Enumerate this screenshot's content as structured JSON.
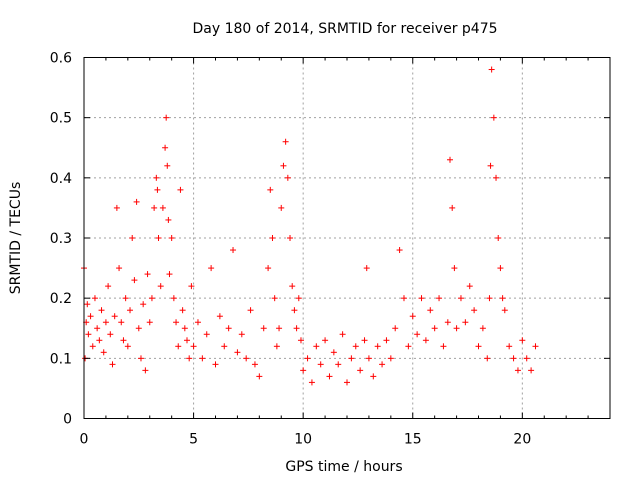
{
  "chart_data": {
    "type": "scatter",
    "title": "Day 180 of 2014, SRMTID for receiver p475",
    "xlabel": "GPS time / hours",
    "ylabel": "SRMTID / TECUs",
    "xlim": [
      0,
      24
    ],
    "ylim": [
      0,
      0.6
    ],
    "xticks": [
      0,
      5,
      10,
      15,
      20
    ],
    "xtick_labels": [
      "0",
      "5",
      "10",
      "15",
      "20"
    ],
    "yticks": [
      0,
      0.1,
      0.2,
      0.3,
      0.4,
      0.5,
      0.6
    ],
    "ytick_labels": [
      "0",
      "0.1",
      "0.2",
      "0.3",
      "0.4",
      "0.5",
      "0.6"
    ],
    "grid": true,
    "marker": "+",
    "color": "#ff0000",
    "series": [
      {
        "name": "SRMTID",
        "x": [
          0.0,
          0.05,
          0.1,
          0.15,
          0.2,
          0.3,
          0.4,
          0.5,
          0.6,
          0.7,
          0.8,
          0.9,
          1.0,
          1.1,
          1.2,
          1.3,
          1.4,
          1.5,
          1.6,
          1.7,
          1.8,
          1.9,
          2.0,
          2.1,
          2.2,
          2.3,
          2.4,
          2.5,
          2.6,
          2.7,
          2.8,
          2.9,
          3.0,
          3.1,
          3.2,
          3.3,
          3.35,
          3.4,
          3.5,
          3.6,
          3.7,
          3.75,
          3.8,
          3.85,
          3.9,
          4.0,
          4.1,
          4.2,
          4.3,
          4.4,
          4.5,
          4.6,
          4.7,
          4.8,
          4.9,
          5.0,
          5.2,
          5.4,
          5.6,
          5.8,
          6.0,
          6.2,
          6.4,
          6.6,
          6.8,
          7.0,
          7.2,
          7.4,
          7.6,
          7.8,
          8.0,
          8.2,
          8.4,
          8.5,
          8.6,
          8.7,
          8.8,
          8.9,
          9.0,
          9.1,
          9.2,
          9.3,
          9.4,
          9.5,
          9.6,
          9.7,
          9.8,
          9.9,
          10.0,
          10.2,
          10.4,
          10.6,
          10.8,
          11.0,
          11.2,
          11.4,
          11.6,
          11.8,
          12.0,
          12.2,
          12.4,
          12.6,
          12.8,
          12.9,
          13.0,
          13.2,
          13.4,
          13.6,
          13.8,
          14.0,
          14.2,
          14.4,
          14.6,
          14.8,
          15.0,
          15.2,
          15.4,
          15.6,
          15.8,
          16.0,
          16.2,
          16.4,
          16.6,
          16.7,
          16.8,
          16.9,
          17.0,
          17.2,
          17.4,
          17.6,
          17.8,
          18.0,
          18.2,
          18.4,
          18.5,
          18.55,
          18.6,
          18.7,
          18.8,
          18.9,
          19.0,
          19.1,
          19.2,
          19.4,
          19.6,
          19.8,
          20.0,
          20.2,
          20.4,
          20.6
        ],
        "y": [
          0.25,
          0.1,
          0.16,
          0.19,
          0.14,
          0.17,
          0.12,
          0.2,
          0.15,
          0.13,
          0.18,
          0.11,
          0.16,
          0.22,
          0.14,
          0.09,
          0.17,
          0.35,
          0.25,
          0.16,
          0.13,
          0.2,
          0.12,
          0.18,
          0.3,
          0.23,
          0.36,
          0.15,
          0.1,
          0.19,
          0.08,
          0.24,
          0.16,
          0.2,
          0.35,
          0.4,
          0.38,
          0.3,
          0.22,
          0.35,
          0.45,
          0.5,
          0.42,
          0.33,
          0.24,
          0.3,
          0.2,
          0.16,
          0.12,
          0.38,
          0.18,
          0.15,
          0.13,
          0.1,
          0.22,
          0.12,
          0.16,
          0.1,
          0.14,
          0.25,
          0.09,
          0.17,
          0.12,
          0.15,
          0.28,
          0.11,
          0.14,
          0.1,
          0.18,
          0.09,
          0.07,
          0.15,
          0.25,
          0.38,
          0.3,
          0.2,
          0.12,
          0.15,
          0.35,
          0.42,
          0.46,
          0.4,
          0.3,
          0.22,
          0.18,
          0.15,
          0.2,
          0.13,
          0.08,
          0.1,
          0.06,
          0.12,
          0.09,
          0.13,
          0.07,
          0.11,
          0.09,
          0.14,
          0.06,
          0.1,
          0.12,
          0.08,
          0.13,
          0.25,
          0.1,
          0.07,
          0.12,
          0.09,
          0.13,
          0.1,
          0.15,
          0.28,
          0.2,
          0.12,
          0.17,
          0.14,
          0.2,
          0.13,
          0.18,
          0.15,
          0.2,
          0.12,
          0.16,
          0.43,
          0.35,
          0.25,
          0.15,
          0.2,
          0.16,
          0.22,
          0.18,
          0.12,
          0.15,
          0.1,
          0.2,
          0.42,
          0.58,
          0.5,
          0.4,
          0.3,
          0.25,
          0.2,
          0.18,
          0.12,
          0.1,
          0.08,
          0.13,
          0.1,
          0.08,
          0.12
        ]
      }
    ]
  }
}
